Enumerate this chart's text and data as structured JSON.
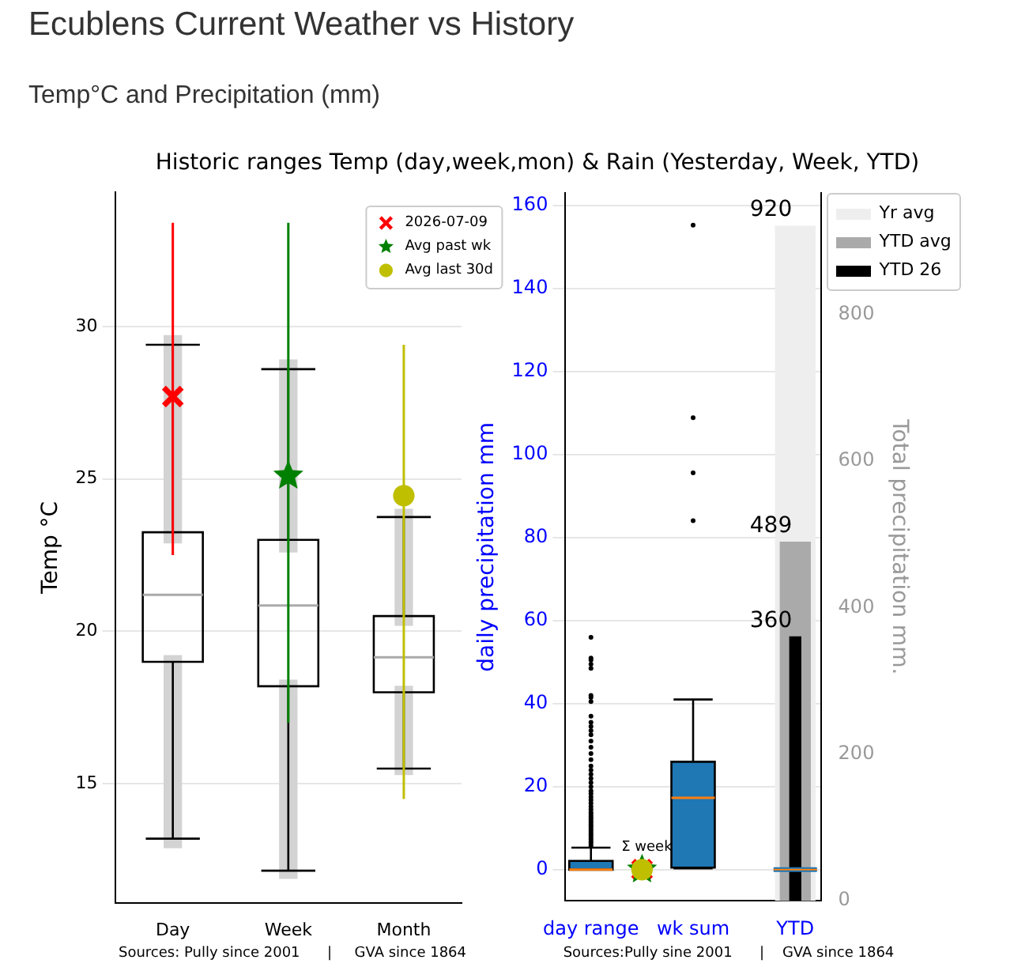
{
  "chart_data": [
    {
      "type": "box",
      "title": "Ecublens Current Weather vs History",
      "subtitle": "Temp°C and Precipitation (mm)",
      "annotations": [
        "Historic ranges Temp (day,week,mon) & Rain (Yesterday, Week, YTD)",
        "Sources: Pully since 2001      |     GVA since 1864"
      ],
      "ylabel": "Temp °C",
      "categories": [
        "Day",
        "Week",
        "Month"
      ],
      "ylim": [
        11.1,
        34.4
      ],
      "yticks": [
        15,
        20,
        25,
        30
      ],
      "grid": "y",
      "legend": "top right",
      "series": [
        {
          "type": "bar",
          "color": "#d3d3d3",
          "base": [
            22.9,
            22.6,
            20.2
          ],
          "values": [
            6.8,
            6.3,
            3.8
          ]
        },
        {
          "type": "bar",
          "color": "#d3d3d3",
          "base": [
            12.9,
            11.9,
            15.3
          ],
          "values": [
            6.3,
            6.5,
            2.9
          ]
        },
        {
          "boxes": [
            {
              "low": 13.2,
              "q1": 19.0,
              "median": 21.2,
              "q3": 23.25,
              "high": 29.4
            },
            {
              "low": 12.15,
              "q1": 18.2,
              "median": 20.85,
              "q3": 23.0,
              "high": 28.6
            },
            {
              "low": 15.5,
              "q1": 18.0,
              "median": 19.15,
              "q3": 20.5,
              "high": 23.75
            }
          ]
        },
        {
          "type": "scatter",
          "name": "2026-07-09",
          "color": "#ff0000",
          "marker": "cross",
          "values": [
            27.7,
            null,
            null
          ],
          "errors": [
            [
              22.5,
              33.4
            ],
            null,
            null
          ]
        },
        {
          "type": "scatter",
          "name": "Avg past wk",
          "color": "#008000",
          "marker": "star",
          "values": [
            null,
            25.1,
            null
          ],
          "errors": [
            null,
            [
              17.0,
              33.4
            ],
            null
          ]
        },
        {
          "type": "scatter",
          "name": "Avg last 30d",
          "color": "#bfbf00",
          "marker": "circle",
          "values": [
            null,
            null,
            24.45
          ],
          "errors": [
            null,
            null,
            [
              14.5,
              29.4
            ]
          ]
        }
      ]
    },
    {
      "type": "box",
      "annotations": [
        "Sources:Pully sine 2001      |    GVA since 1864",
        {
          "text": "Σ week",
          "y": 0
        }
      ],
      "ylabel": "daily precipitation mm",
      "y2label": "Total precipitation mm.",
      "categories": [
        "day range",
        null,
        "wk sum",
        null,
        "YTD"
      ],
      "ylim": [
        -7.5,
        163
      ],
      "yticks": [
        0,
        20,
        40,
        60,
        80,
        100,
        120,
        140,
        160
      ],
      "y2lim": [
        0,
        965
      ],
      "y2ticks": [
        0,
        200,
        400,
        600,
        800
      ],
      "grid": "y",
      "legend": "right",
      "series": [
        {
          "type": "bar",
          "axis": "y2",
          "name": "Yr avg",
          "color": "#eeeeee",
          "values": [
            null,
            null,
            null,
            null,
            920
          ],
          "value_labels": [
            null,
            null,
            null,
            null,
            "920"
          ]
        },
        {
          "type": "bar",
          "axis": "y2",
          "name": "YTD avg",
          "color": "#aaaaaa",
          "values": [
            null,
            null,
            null,
            null,
            489
          ],
          "value_labels": [
            null,
            null,
            null,
            null,
            "489"
          ]
        },
        {
          "type": "bar",
          "axis": "y2",
          "name": "YTD 26",
          "color": "#000000",
          "values": [
            null,
            null,
            null,
            null,
            360
          ],
          "value_labels": [
            null,
            null,
            null,
            null,
            "360"
          ]
        },
        {
          "color": "#1f77b4",
          "boxes": [
            {
              "low": 0,
              "q1": 0,
              "median": 0,
              "q3": 2.1,
              "high": 5.3,
              "outliers": [
                5.8,
                6.3,
                6.8,
                7.3,
                7.8,
                8.3,
                8.8,
                9.3,
                9.8,
                10.3,
                10.8,
                11.3,
                11.8,
                12.3,
                12.8,
                13.3,
                13.8,
                14.5,
                15.2,
                16,
                16.8,
                17.5,
                18.3,
                19,
                20,
                21,
                22,
                23,
                24,
                25,
                26.5,
                28,
                29.5,
                31,
                32.5,
                33.5,
                34.5,
                35.5,
                37,
                40.5,
                41.5,
                42,
                48.5,
                49.5,
                50.5,
                51,
                56
              ]
            },
            null,
            {
              "low": 0.3,
              "q1": 0.5,
              "median": 17.3,
              "q3": 26.0,
              "high": 41.0,
              "outliers": [
                84.1,
                95.6,
                108.9,
                155.3
              ]
            },
            null,
            {
              "low": 0,
              "q1": 0,
              "median": 0,
              "q3": 0,
              "high": 0
            }
          ]
        },
        {
          "type": "scatter",
          "color": "#ff0000",
          "marker": "cross",
          "values": [
            null,
            0,
            null,
            null,
            null
          ]
        },
        {
          "type": "scatter",
          "color": "#008000",
          "marker": "star",
          "values": [
            null,
            0,
            null,
            null,
            null
          ]
        },
        {
          "type": "scatter",
          "color": "#bfbf00",
          "marker": "circle",
          "values": [
            null,
            0,
            null,
            null,
            null
          ]
        }
      ]
    }
  ]
}
